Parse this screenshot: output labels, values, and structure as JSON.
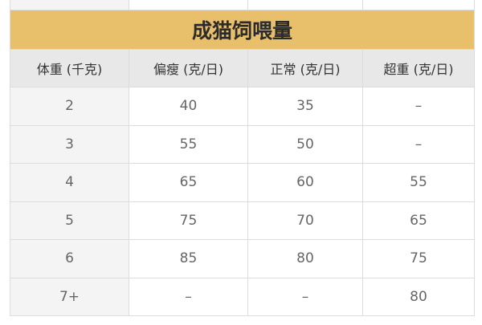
{
  "title": "成猫饲喂量",
  "headers": [
    "体重 (千克)",
    "偏瘦 (克/日)",
    "正常 (克/日)",
    "超重 (克/日)"
  ],
  "rows": [
    [
      "2",
      "40",
      "35",
      "–"
    ],
    [
      "3",
      "55",
      "50",
      "–"
    ],
    [
      "4",
      "65",
      "60",
      "55"
    ],
    [
      "5",
      "75",
      "70",
      "65"
    ],
    [
      "6",
      "85",
      "80",
      "75"
    ],
    [
      "7+",
      "–",
      "–",
      "80"
    ]
  ],
  "colors": {
    "title_bg": "#e8bf6b",
    "header_bg": "#e8e8e8"
  }
}
